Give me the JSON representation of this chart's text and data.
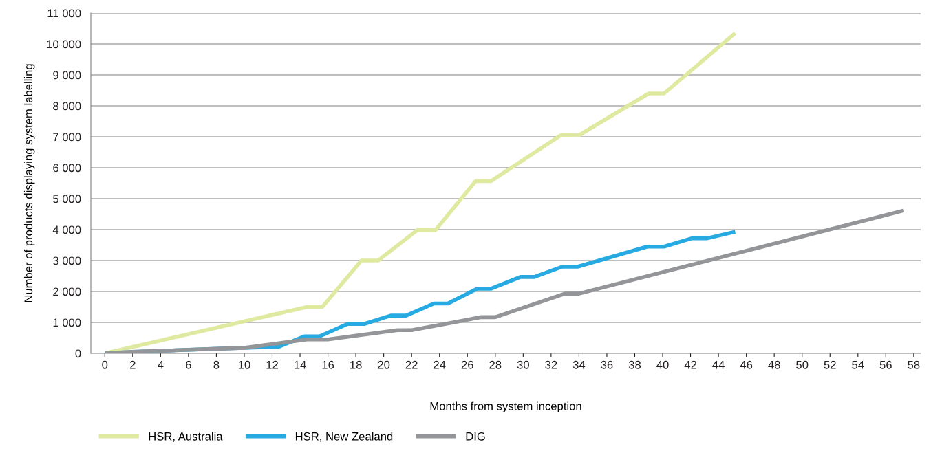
{
  "chart_data": {
    "type": "line",
    "xlabel": "Months from system inception",
    "ylabel": "Number of products displaying system labelling",
    "xlim": [
      -1,
      58.5
    ],
    "xticks": [
      0,
      2,
      4,
      6,
      8,
      10,
      12,
      14,
      16,
      18,
      20,
      22,
      24,
      26,
      28,
      30,
      32,
      34,
      36,
      38,
      40,
      42,
      44,
      46,
      48,
      50,
      52,
      54,
      56,
      58
    ],
    "ylim": [
      0,
      11000
    ],
    "yticks": [
      {
        "value": 0,
        "label": "0"
      },
      {
        "value": 1000,
        "label": "1 000"
      },
      {
        "value": 2000,
        "label": "2 000"
      },
      {
        "value": 3000,
        "label": "3 000"
      },
      {
        "value": 4000,
        "label": "4 000"
      },
      {
        "value": 5000,
        "label": "5 000"
      },
      {
        "value": 6000,
        "label": "6 000"
      },
      {
        "value": 7000,
        "label": "7 000"
      },
      {
        "value": 8000,
        "label": "8 000"
      },
      {
        "value": 9000,
        "label": "9 000"
      },
      {
        "value": 10000,
        "label": "10 000"
      },
      {
        "value": 11000,
        "label": "11 000"
      }
    ],
    "grid": "y",
    "legend": "bottom left",
    "marker": "none",
    "line_style": "solid",
    "series": [
      {
        "name": "HSR, Australia",
        "color": "#dfe9a0",
        "x": [
          0,
          14.5,
          15.6,
          18.4,
          19.6,
          22.4,
          23.7,
          26.6,
          27.7,
          32.7,
          34,
          39,
          40.1,
          45.2
        ],
        "values": [
          0,
          1500,
          1500,
          3000,
          3000,
          3980,
          3980,
          5570,
          5570,
          7050,
          7050,
          8400,
          8400,
          10350
        ]
      },
      {
        "name": "HSR, New Zealand",
        "color": "#27aae1",
        "x": [
          0,
          2,
          12.5,
          14.3,
          15.4,
          17.4,
          18.6,
          20.5,
          21.6,
          23.6,
          24.6,
          26.7,
          27.7,
          29.8,
          30.8,
          32.8,
          33.9,
          38.9,
          40.1,
          42.1,
          43.2,
          45.2
        ],
        "values": [
          0,
          50,
          220,
          550,
          550,
          950,
          950,
          1220,
          1220,
          1610,
          1610,
          2090,
          2090,
          2470,
          2470,
          2800,
          2800,
          3450,
          3450,
          3720,
          3720,
          3930
        ]
      },
      {
        "name": "DIG",
        "color": "#939598",
        "x": [
          0,
          2,
          10,
          14.5,
          16,
          21,
          22,
          25,
          27,
          28,
          33,
          34,
          57.3
        ],
        "values": [
          0,
          50,
          180,
          450,
          450,
          750,
          750,
          1000,
          1170,
          1170,
          1930,
          1930,
          4620
        ]
      }
    ]
  }
}
